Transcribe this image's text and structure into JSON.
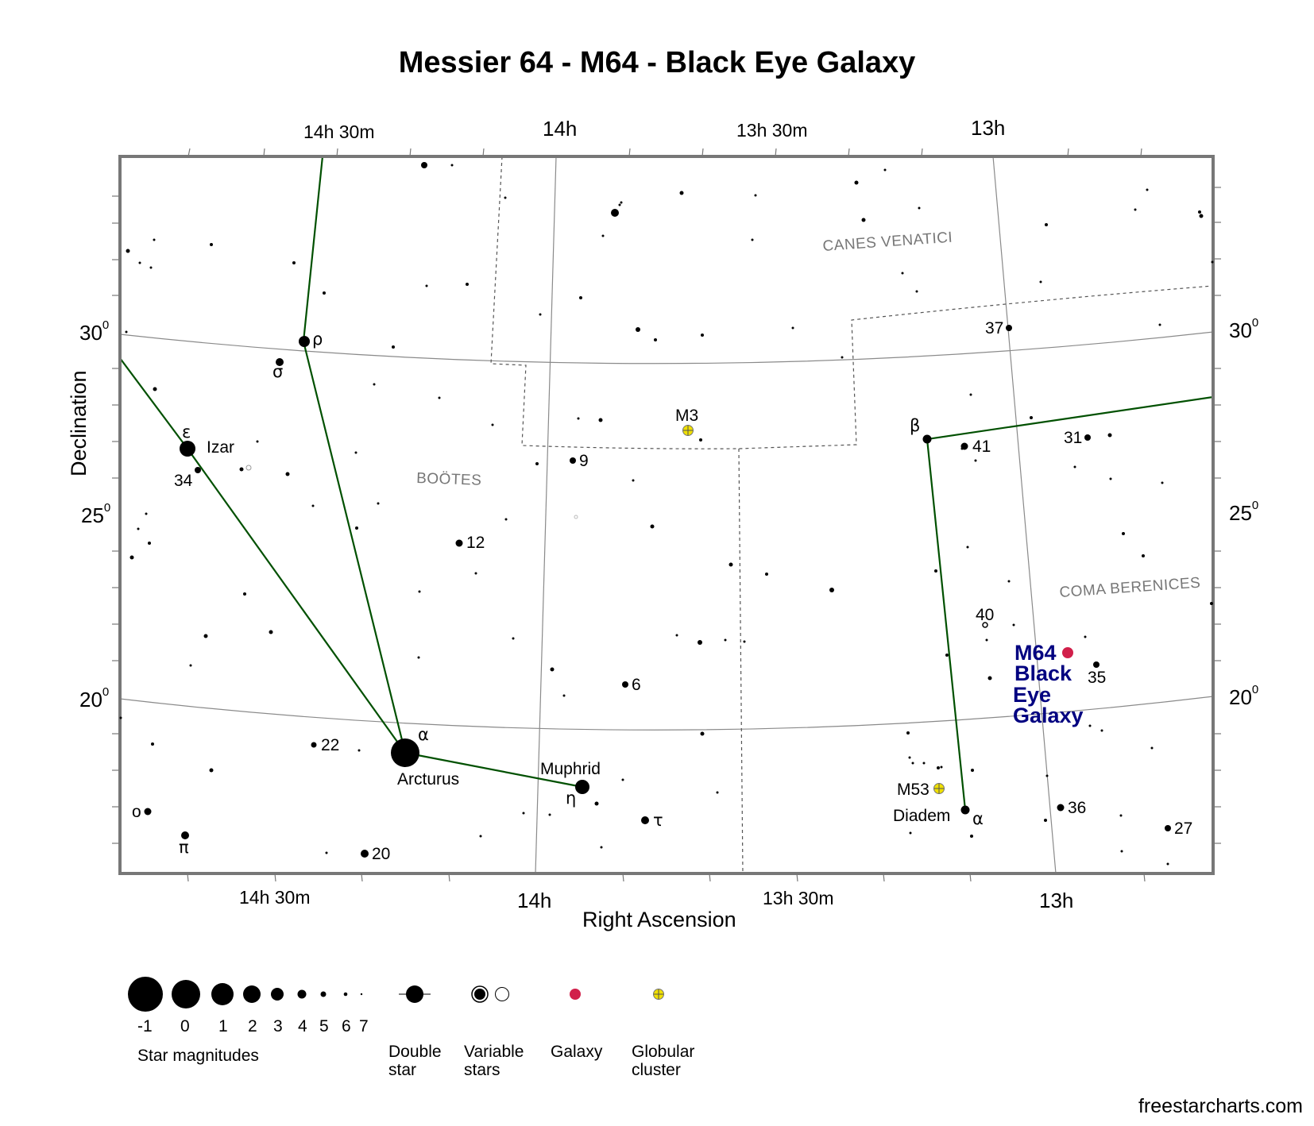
{
  "title": "Messier 64 - M64 - Black Eye Galaxy",
  "credit": "freestarcharts.com",
  "axes": {
    "x_title": "Right Ascension",
    "y_title": "Declination",
    "ra_top": [
      "14h 30m",
      "14h",
      "13h 30m",
      "13h"
    ],
    "ra_bottom": [
      "14h 30m",
      "14h",
      "13h 30m",
      "13h"
    ],
    "dec_left": [
      {
        "v": "30",
        "sup": "0"
      },
      {
        "v": "25",
        "sup": "0"
      },
      {
        "v": "20",
        "sup": "0"
      }
    ],
    "dec_right": [
      {
        "v": "30",
        "sup": "0"
      },
      {
        "v": "25",
        "sup": "0"
      },
      {
        "v": "20",
        "sup": "0"
      }
    ]
  },
  "constellations": {
    "bootes": "BOÖTES",
    "canes_venatici": "CANES VENATICI",
    "coma_berenices": "COMA BERENICES"
  },
  "labels": {
    "rho": "ρ",
    "sigma": "σ",
    "epsilon": "ε",
    "izar": "Izar",
    "n34": "34",
    "n12": "12",
    "n9": "9",
    "m3": "M3",
    "n6": "6",
    "alpha_boo": "α",
    "arcturus": "Arcturus",
    "n22": "22",
    "muphrid": "Muphrid",
    "eta": "η",
    "tau": "τ",
    "omicron": "o",
    "pi": "π",
    "n20": "20",
    "beta": "β",
    "n41": "41",
    "n37": "37",
    "n31": "31",
    "n40": "40",
    "n35": "35",
    "m53": "M53",
    "diadem": "Diadem",
    "alpha_com": "α",
    "n36": "36",
    "n27": "27"
  },
  "target": {
    "name_lines": [
      "M64",
      "Black",
      "Eye",
      "Galaxy"
    ],
    "color": "#000080",
    "marker_color": "#d11f4a"
  },
  "legend": {
    "magnitudes": [
      "-1",
      "0",
      "1",
      "2",
      "3",
      "4",
      "5",
      "6",
      "7"
    ],
    "magnitudes_caption": "Star magnitudes",
    "double": [
      "Double",
      "star"
    ],
    "variable": [
      "Variable",
      "stars"
    ],
    "galaxy": "Galaxy",
    "globular": [
      "Globular",
      "cluster"
    ]
  },
  "colors": {
    "constellation_line": "#005000",
    "grid": "#8a8a8a",
    "frame": "#777777",
    "galaxy": "#d11f4a",
    "globular": "#f0e000",
    "target_text": "#000080"
  }
}
